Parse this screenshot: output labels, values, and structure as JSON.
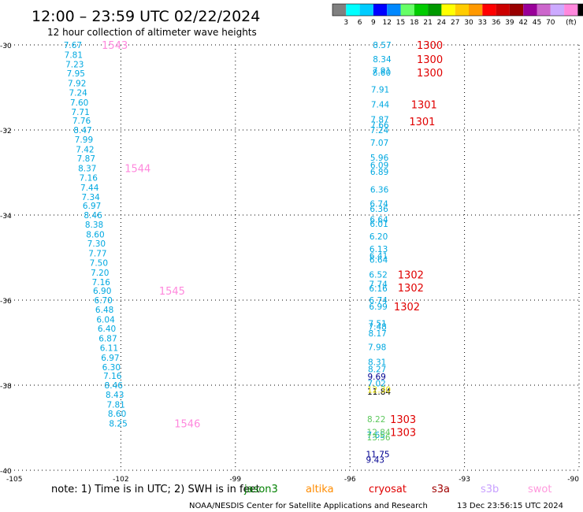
{
  "header": {
    "title": "12:00 – 23:59 UTC 02/22/2024",
    "subtitle": "12 hour collection of altimeter wave heights"
  },
  "legend": {
    "colors": [
      "#808080",
      "#00ffff",
      "#00ccff",
      "#0000ff",
      "#0088ff",
      "#66ff66",
      "#00cc00",
      "#009900",
      "#ffff00",
      "#ffcc00",
      "#ff9900",
      "#ff0000",
      "#cc0000",
      "#990000",
      "#990099",
      "#cc66cc",
      "#ccaaff",
      "#ff88dd",
      "#000000"
    ],
    "labels": [
      "3",
      "6",
      "9",
      "12",
      "15",
      "18",
      "21",
      "24",
      "27",
      "30",
      "33",
      "36",
      "39",
      "42",
      "45",
      "70"
    ],
    "unit": "(ft)"
  },
  "footer": {
    "note": "note:  1) Time is in UTC; 2) SWH is in feet",
    "satellites": [
      {
        "name": "jason3",
        "color": "#008000"
      },
      {
        "name": "altika",
        "color": "#ff8c00"
      },
      {
        "name": "cryosat",
        "color": "#e00000"
      },
      {
        "name": "s3a",
        "color": "#a00000"
      },
      {
        "name": "s3b",
        "color": "#c8a0ff"
      },
      {
        "name": "swot",
        "color": "#ff99dd"
      }
    ],
    "credit": "NOAA/NESDIS Center for Satellite Applications and Research",
    "generated": "13 Dec 23:56:15 UTC 2024"
  },
  "chart_data": {
    "type": "scatter",
    "title": "12:00 – 23:59 UTC 02/22/2024",
    "x_axis": {
      "ticks": [
        -105,
        -102,
        -99,
        -96,
        -93,
        -90
      ],
      "tick_labels": [
        "-105",
        "-102",
        "-99",
        "-96",
        "-93",
        "-90"
      ],
      "range": [
        -105,
        -90
      ]
    },
    "y_axis": {
      "ticks": [
        -30,
        -32,
        -34,
        -36,
        -38,
        -40
      ],
      "tick_labels": [
        "-30",
        "-32",
        "-34",
        "-36",
        "-38",
        "-40"
      ],
      "range": [
        -40,
        -30
      ]
    },
    "grid": "dotted",
    "series": [
      {
        "color": "#00a8e0",
        "points": [
          {
            "x": -103.5,
            "y": -30.0,
            "label": "7.67"
          },
          {
            "x": -103.48,
            "y": -30.23,
            "label": "7.81"
          },
          {
            "x": -103.45,
            "y": -30.45,
            "label": "7.23"
          },
          {
            "x": -103.42,
            "y": -30.67,
            "label": "7.95"
          },
          {
            "x": -103.39,
            "y": -30.9,
            "label": "7.92"
          },
          {
            "x": -103.36,
            "y": -31.12,
            "label": "7.24"
          },
          {
            "x": -103.33,
            "y": -31.35,
            "label": "7.60"
          },
          {
            "x": -103.3,
            "y": -31.57,
            "label": "7.71"
          },
          {
            "x": -103.27,
            "y": -31.78,
            "label": "7.76"
          },
          {
            "x": -103.24,
            "y": -32.0,
            "label": "8.47"
          },
          {
            "x": -103.21,
            "y": -32.22,
            "label": "7.99"
          },
          {
            "x": -103.18,
            "y": -32.45,
            "label": "7.42"
          },
          {
            "x": -103.15,
            "y": -32.67,
            "label": "7.87"
          },
          {
            "x": -103.12,
            "y": -32.9,
            "label": "8.37"
          },
          {
            "x": -103.09,
            "y": -33.12,
            "label": "7.16"
          },
          {
            "x": -103.06,
            "y": -33.35,
            "label": "7.44"
          },
          {
            "x": -103.03,
            "y": -33.57,
            "label": "7.34"
          },
          {
            "x": -103.0,
            "y": -33.78,
            "label": "6.97"
          },
          {
            "x": -102.97,
            "y": -34.0,
            "label": "8.46"
          },
          {
            "x": -102.94,
            "y": -34.22,
            "label": "8.38"
          },
          {
            "x": -102.91,
            "y": -34.45,
            "label": "8.60"
          },
          {
            "x": -102.88,
            "y": -34.67,
            "label": "7.30"
          },
          {
            "x": -102.85,
            "y": -34.9,
            "label": "7.77"
          },
          {
            "x": -102.82,
            "y": -35.12,
            "label": "7.50"
          },
          {
            "x": -102.79,
            "y": -35.35,
            "label": "7.20"
          },
          {
            "x": -102.76,
            "y": -35.57,
            "label": "7.16"
          },
          {
            "x": -102.73,
            "y": -35.78,
            "label": "6.90"
          },
          {
            "x": -102.7,
            "y": -36.0,
            "label": "6.70"
          },
          {
            "x": -102.67,
            "y": -36.22,
            "label": "6.48"
          },
          {
            "x": -102.64,
            "y": -36.45,
            "label": "6.04"
          },
          {
            "x": -102.61,
            "y": -36.67,
            "label": "6.40"
          },
          {
            "x": -102.58,
            "y": -36.9,
            "label": "6.87"
          },
          {
            "x": -102.55,
            "y": -37.12,
            "label": "6.11"
          },
          {
            "x": -102.52,
            "y": -37.35,
            "label": "6.97"
          },
          {
            "x": -102.49,
            "y": -37.57,
            "label": "6.30"
          },
          {
            "x": -102.46,
            "y": -37.78,
            "label": "7.16"
          },
          {
            "x": -102.43,
            "y": -38.0,
            "label": "8.46"
          },
          {
            "x": -102.4,
            "y": -38.22,
            "label": "8.43"
          },
          {
            "x": -102.37,
            "y": -38.45,
            "label": "7.81"
          },
          {
            "x": -102.34,
            "y": -38.67,
            "label": "8.60"
          },
          {
            "x": -102.31,
            "y": -38.9,
            "label": "8.25"
          },
          {
            "x": -95.4,
            "y": -30.0,
            "label": "8.57"
          },
          {
            "x": -95.4,
            "y": -30.33,
            "label": "8.34"
          },
          {
            "x": -95.41,
            "y": -30.6,
            "label": "7.91"
          },
          {
            "x": -95.41,
            "y": -30.65,
            "label": "8.60"
          },
          {
            "x": -95.45,
            "y": -31.05,
            "label": "7.91"
          },
          {
            "x": -95.45,
            "y": -31.4,
            "label": "7.44"
          },
          {
            "x": -95.46,
            "y": -31.75,
            "label": "7.87"
          },
          {
            "x": -95.46,
            "y": -31.88,
            "label": "7.66"
          },
          {
            "x": -95.47,
            "y": -32.0,
            "label": "7.24"
          },
          {
            "x": -95.47,
            "y": -32.3,
            "label": "7.07"
          },
          {
            "x": -95.47,
            "y": -32.65,
            "label": "5.96"
          },
          {
            "x": -95.47,
            "y": -32.82,
            "label": "6.09"
          },
          {
            "x": -95.47,
            "y": -32.98,
            "label": "6.89"
          },
          {
            "x": -95.47,
            "y": -33.4,
            "label": "6.36"
          },
          {
            "x": -95.48,
            "y": -33.73,
            "label": "6.74"
          },
          {
            "x": -95.48,
            "y": -33.85,
            "label": "6.36"
          },
          {
            "x": -95.48,
            "y": -34.1,
            "label": "6.64"
          },
          {
            "x": -95.48,
            "y": -34.2,
            "label": "6.01"
          },
          {
            "x": -95.49,
            "y": -34.5,
            "label": "6.20"
          },
          {
            "x": -95.49,
            "y": -34.8,
            "label": "6.13"
          },
          {
            "x": -95.49,
            "y": -34.95,
            "label": "6.41"
          },
          {
            "x": -95.49,
            "y": -35.05,
            "label": "6.64"
          },
          {
            "x": -95.5,
            "y": -35.4,
            "label": "6.52"
          },
          {
            "x": -95.5,
            "y": -35.62,
            "label": "7.74"
          },
          {
            "x": -95.5,
            "y": -35.72,
            "label": "6.16"
          },
          {
            "x": -95.5,
            "y": -36.0,
            "label": "6.74"
          },
          {
            "x": -95.5,
            "y": -36.15,
            "label": "6.99"
          },
          {
            "x": -95.52,
            "y": -36.55,
            "label": "7.51"
          },
          {
            "x": -95.52,
            "y": -36.62,
            "label": "7.48"
          },
          {
            "x": -95.52,
            "y": -36.78,
            "label": "8.17"
          },
          {
            "x": -95.53,
            "y": -37.1,
            "label": "7.98"
          },
          {
            "x": -95.53,
            "y": -37.45,
            "label": "8.31"
          },
          {
            "x": -95.53,
            "y": -37.62,
            "label": "8.27"
          },
          {
            "x": -95.54,
            "y": -37.95,
            "label": "7.02"
          },
          {
            "x": -95.56,
            "y": -39.17,
            "label": "7.65"
          }
        ]
      },
      {
        "color": "#000090",
        "points": [
          {
            "x": -95.54,
            "y": -37.8,
            "label": "9.69"
          },
          {
            "x": -95.58,
            "y": -39.62,
            "label": "11.75"
          },
          {
            "x": -95.58,
            "y": -39.75,
            "label": "9.43"
          }
        ]
      },
      {
        "color": "#000000",
        "points": [
          {
            "x": -95.55,
            "y": -38.15,
            "label": "11.84"
          }
        ]
      },
      {
        "color": "#e8e000",
        "points": [
          {
            "x": -95.55,
            "y": -38.1,
            "label": "12.30"
          }
        ]
      },
      {
        "color": "#5cc85c",
        "points": [
          {
            "x": -95.55,
            "y": -38.8,
            "label": "8.22"
          },
          {
            "x": -95.56,
            "y": -39.1,
            "label": "12.84"
          },
          {
            "x": -95.56,
            "y": -39.22,
            "label": "13.56"
          }
        ]
      }
    ],
    "track_labels": [
      {
        "x": -102.5,
        "y": -30.0,
        "label": "1543",
        "color": "#ff88dd"
      },
      {
        "x": -101.9,
        "y": -32.9,
        "label": "1544",
        "color": "#ff88dd"
      },
      {
        "x": -101.0,
        "y": -35.78,
        "label": "1545",
        "color": "#ff88dd"
      },
      {
        "x": -100.6,
        "y": -38.9,
        "label": "1546",
        "color": "#ff88dd"
      },
      {
        "x": -94.25,
        "y": -30.0,
        "label": "1300",
        "color": "#e00000"
      },
      {
        "x": -94.25,
        "y": -30.33,
        "label": "1300",
        "color": "#e00000"
      },
      {
        "x": -94.25,
        "y": -30.65,
        "label": "1300",
        "color": "#e00000"
      },
      {
        "x": -94.4,
        "y": -31.4,
        "label": "1301",
        "color": "#e00000"
      },
      {
        "x": -94.45,
        "y": -31.8,
        "label": "1301",
        "color": "#e00000"
      },
      {
        "x": -94.75,
        "y": -35.4,
        "label": "1302",
        "color": "#e00000"
      },
      {
        "x": -94.75,
        "y": -35.7,
        "label": "1302",
        "color": "#e00000"
      },
      {
        "x": -94.85,
        "y": -36.15,
        "label": "1302",
        "color": "#e00000"
      },
      {
        "x": -94.95,
        "y": -38.8,
        "label": "1303",
        "color": "#e00000"
      },
      {
        "x": -94.95,
        "y": -39.1,
        "label": "1303",
        "color": "#e00000"
      }
    ]
  }
}
